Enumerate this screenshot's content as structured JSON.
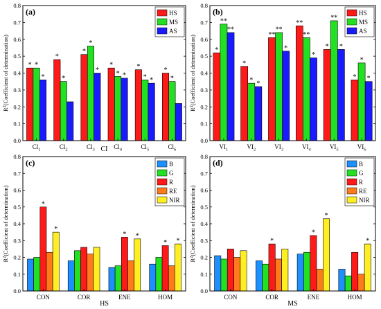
{
  "colors": {
    "HS": "#ff1a1a",
    "MS": "#22e022",
    "AS": "#1a1aff",
    "B": "#1e8fff",
    "G": "#22e022",
    "R": "#ff1a1a",
    "RE": "#ff7a1a",
    "NIR": "#ffee22"
  },
  "chart_data": [
    {
      "type": "bar",
      "panel": "(a)",
      "xlabel": "CI",
      "ylabel": "R²(Coefficient of determination)",
      "ylim": [
        0,
        0.8
      ],
      "yticks": [
        "0.0",
        "0.1",
        "0.2",
        "0.3",
        "0.4",
        "0.5",
        "0.6",
        "0.7",
        "0.8"
      ],
      "categories": [
        "Cl1",
        "Cl2",
        "Cl3",
        "Cl4",
        "Cl5",
        "Cl6"
      ],
      "category_labels": [
        {
          "main": "Cl",
          "sub": "1"
        },
        {
          "main": "Cl",
          "sub": "2"
        },
        {
          "main": "Cl",
          "sub": "3"
        },
        {
          "main": "Cl",
          "sub": "4"
        },
        {
          "main": "Cl",
          "sub": "5"
        },
        {
          "main": "Cl",
          "sub": "6"
        }
      ],
      "legend_position": "top-right",
      "series": [
        {
          "name": "HS",
          "color_key": "HS",
          "values": [
            0.43,
            0.48,
            0.51,
            0.43,
            0.42,
            0.4
          ],
          "marks": [
            "*",
            "*",
            "*",
            "*",
            "*",
            "*"
          ]
        },
        {
          "name": "MS",
          "color_key": "MS",
          "values": [
            0.43,
            0.35,
            0.56,
            0.38,
            0.36,
            0.35
          ],
          "marks": [
            "*",
            "*",
            "*",
            "*",
            "*",
            "*"
          ]
        },
        {
          "name": "AS",
          "color_key": "AS",
          "values": [
            0.36,
            0.23,
            0.4,
            0.37,
            0.34,
            0.22
          ],
          "marks": [
            "*",
            "",
            "*",
            "*",
            "*",
            ""
          ]
        }
      ]
    },
    {
      "type": "bar",
      "panel": "(b)",
      "xlabel": "",
      "ylabel": "R²(Coefficient of determination)",
      "ylim": [
        0,
        0.8
      ],
      "yticks": [
        "0.0",
        "0.1",
        "0.2",
        "0.3",
        "0.4",
        "0.5",
        "0.6",
        "0.7",
        "0.8"
      ],
      "categories": [
        "VI1",
        "VI2",
        "VI3",
        "VI4",
        "VI5",
        "VI6"
      ],
      "category_labels": [
        {
          "main": "VI",
          "sub": "1"
        },
        {
          "main": "VI",
          "sub": "2"
        },
        {
          "main": "VI",
          "sub": "3"
        },
        {
          "main": "VI",
          "sub": "4"
        },
        {
          "main": "VI",
          "sub": "5"
        },
        {
          "main": "VI",
          "sub": "6"
        }
      ],
      "legend_position": "top-right",
      "series": [
        {
          "name": "HS",
          "color_key": "HS",
          "values": [
            0.52,
            0.44,
            0.61,
            0.68,
            0.54,
            0.36
          ],
          "marks": [
            "*",
            "*",
            "**",
            "**",
            "*",
            "*"
          ]
        },
        {
          "name": "MS",
          "color_key": "MS",
          "values": [
            0.69,
            0.34,
            0.64,
            0.61,
            0.71,
            0.46
          ],
          "marks": [
            "**",
            "*",
            "**",
            "**",
            "**",
            "*"
          ]
        },
        {
          "name": "AS",
          "color_key": "AS",
          "values": [
            0.64,
            0.32,
            0.53,
            0.49,
            0.54,
            0.35
          ],
          "marks": [
            "**",
            "*",
            "*",
            "*",
            "*",
            "*"
          ]
        }
      ]
    },
    {
      "type": "bar",
      "panel": "(c)",
      "xlabel": "HS",
      "ylabel": "R²(Coefficient of determination)",
      "ylim": [
        0,
        0.8
      ],
      "yticks": [
        "0.0",
        "0.1",
        "0.2",
        "0.3",
        "0.4",
        "0.5",
        "0.6",
        "0.7",
        "0.8"
      ],
      "categories": [
        "CON",
        "COR",
        "ENE",
        "HOM"
      ],
      "category_labels": [
        {
          "main": "CON",
          "sub": ""
        },
        {
          "main": "COR",
          "sub": ""
        },
        {
          "main": "ENE",
          "sub": ""
        },
        {
          "main": "HOM",
          "sub": ""
        }
      ],
      "legend_position": "top-right",
      "series": [
        {
          "name": "B",
          "color_key": "B",
          "values": [
            0.19,
            0.18,
            0.14,
            0.16
          ],
          "marks": [
            "",
            "",
            "",
            ""
          ]
        },
        {
          "name": "G",
          "color_key": "G",
          "values": [
            0.2,
            0.24,
            0.15,
            0.2
          ],
          "marks": [
            "",
            "",
            "",
            ""
          ]
        },
        {
          "name": "R",
          "color_key": "R",
          "values": [
            0.5,
            0.26,
            0.32,
            0.27
          ],
          "marks": [
            "*",
            "",
            "*",
            "*"
          ]
        },
        {
          "name": "RE",
          "color_key": "RE",
          "values": [
            0.23,
            0.22,
            0.18,
            0.15
          ],
          "marks": [
            "",
            "",
            "",
            ""
          ]
        },
        {
          "name": "NIR",
          "color_key": "NIR",
          "values": [
            0.35,
            0.26,
            0.31,
            0.28
          ],
          "marks": [
            "*",
            "",
            "*",
            "*"
          ]
        }
      ]
    },
    {
      "type": "bar",
      "panel": "(d)",
      "xlabel": "MS",
      "ylabel": "R²(Coefficient of determination)",
      "ylim": [
        0,
        0.8
      ],
      "yticks": [
        "0.0",
        "0.1",
        "0.2",
        "0.3",
        "0.4",
        "0.5",
        "0.6",
        "0.7",
        "0.8"
      ],
      "categories": [
        "CON",
        "COR",
        "ENE",
        "HOM"
      ],
      "category_labels": [
        {
          "main": "CON",
          "sub": ""
        },
        {
          "main": "COR",
          "sub": ""
        },
        {
          "main": "ENE",
          "sub": ""
        },
        {
          "main": "HOM",
          "sub": ""
        }
      ],
      "legend_position": "top-right",
      "series": [
        {
          "name": "B",
          "color_key": "B",
          "values": [
            0.21,
            0.18,
            0.22,
            0.13
          ],
          "marks": [
            "",
            "",
            "",
            ""
          ]
        },
        {
          "name": "G",
          "color_key": "G",
          "values": [
            0.19,
            0.16,
            0.23,
            0.09
          ],
          "marks": [
            "",
            "",
            "",
            ""
          ]
        },
        {
          "name": "R",
          "color_key": "R",
          "values": [
            0.25,
            0.28,
            0.33,
            0.23
          ],
          "marks": [
            "",
            "*",
            "*",
            ""
          ]
        },
        {
          "name": "RE",
          "color_key": "RE",
          "values": [
            0.2,
            0.19,
            0.13,
            0.1
          ],
          "marks": [
            "",
            "",
            "",
            ""
          ]
        },
        {
          "name": "NIR",
          "color_key": "NIR",
          "values": [
            0.24,
            0.25,
            0.43,
            0.28
          ],
          "marks": [
            "",
            "",
            "*",
            "*"
          ]
        }
      ]
    }
  ]
}
